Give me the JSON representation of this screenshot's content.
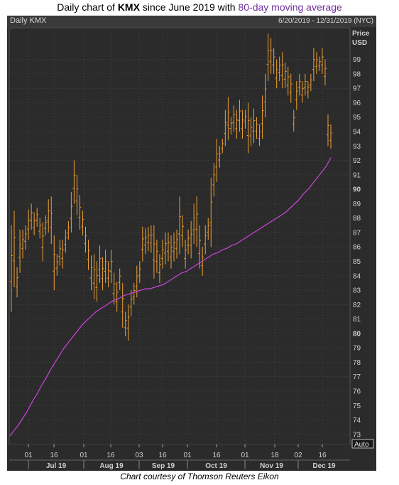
{
  "title": {
    "prefix": "Daily chart of ",
    "ticker": "KMX",
    "middle": " since June 2019 with ",
    "ma_text": "80-day moving average"
  },
  "header": {
    "left": "Daily KMX",
    "right": "6/20/2019 - 12/31/2019 (NYC)"
  },
  "footer": "Chart courtesy of Thomson Reuters Eikon",
  "chart_data": {
    "type": "ohlc-bar",
    "ylabel": "Price",
    "yunit": "USD",
    "auto_label": "Auto",
    "ylim": [
      72.3,
      101.2
    ],
    "y_ticks": [
      73,
      74,
      75,
      76,
      77,
      78,
      79,
      80,
      81,
      82,
      83,
      84,
      85,
      86,
      87,
      88,
      89,
      90,
      91,
      92,
      93,
      94,
      95,
      96,
      97,
      98,
      99
    ],
    "y_bold_ticks": [
      80,
      90
    ],
    "x_day_ticks": [
      "01",
      "16",
      "01",
      "16",
      "03",
      "16",
      "01",
      "16",
      "01",
      "18",
      "02",
      "16"
    ],
    "x_month_labels": [
      "Jul 19",
      "Aug 19",
      "Sep 19",
      "Oct 19",
      "Nov 19",
      "Dec 19"
    ],
    "colors": {
      "bars": "#f0a030",
      "moving_average": "#cc44dd",
      "background": "#2b2b2b",
      "grid": "#555555",
      "axis_text": "#d0d0d0"
    },
    "bars": [
      [
        87.5,
        81.5
      ],
      [
        88.5,
        83.2
      ],
      [
        84.6,
        82.5
      ],
      [
        87.2,
        84.2
      ],
      [
        87.2,
        85.2
      ],
      [
        87.5,
        85.8
      ],
      [
        88.6,
        86.5
      ],
      [
        89.0,
        87.2
      ],
      [
        88.4,
        86.8
      ],
      [
        88.7,
        87.4
      ],
      [
        88.0,
        86.6
      ],
      [
        87.7,
        85.0
      ],
      [
        88.2,
        86.8
      ],
      [
        89.3,
        87.0
      ],
      [
        89.5,
        86.2
      ],
      [
        86.8,
        83.0
      ],
      [
        85.5,
        84.0
      ],
      [
        86.5,
        84.7
      ],
      [
        86.5,
        84.5
      ],
      [
        87.2,
        85.6
      ],
      [
        87.8,
        86.5
      ],
      [
        89.8,
        87.0
      ],
      [
        92.0,
        89.0
      ],
      [
        91.0,
        88.2
      ],
      [
        89.6,
        87.2
      ],
      [
        88.5,
        86.8
      ],
      [
        87.4,
        85.6
      ],
      [
        86.5,
        84.4
      ],
      [
        85.4,
        83.0
      ],
      [
        85.5,
        82.4
      ],
      [
        85.0,
        82.2
      ],
      [
        86.1,
        83.5
      ],
      [
        85.3,
        83.0
      ],
      [
        85.8,
        83.5
      ],
      [
        85.0,
        83.2
      ],
      [
        85.8,
        83.5
      ],
      [
        84.2,
        82.0
      ],
      [
        83.6,
        81.5
      ],
      [
        84.5,
        83.0
      ],
      [
        83.5,
        80.4
      ],
      [
        81.5,
        79.8
      ],
      [
        82.0,
        79.5
      ],
      [
        83.0,
        81.2
      ],
      [
        83.5,
        82.0
      ],
      [
        84.7,
        82.5
      ],
      [
        85.0,
        83.5
      ],
      [
        87.4,
        85.0
      ],
      [
        87.3,
        85.5
      ],
      [
        87.4,
        85.7
      ],
      [
        87.5,
        85.6
      ],
      [
        87.5,
        83.8
      ],
      [
        86.5,
        84.2
      ],
      [
        85.5,
        83.5
      ],
      [
        86.5,
        84.5
      ],
      [
        87.0,
        84.8
      ],
      [
        87.0,
        85.0
      ],
      [
        86.8,
        84.5
      ],
      [
        87.0,
        85.0
      ],
      [
        87.2,
        85.2
      ],
      [
        89.5,
        85.5
      ],
      [
        88.2,
        86.0
      ],
      [
        86.5,
        84.5
      ],
      [
        87.2,
        85.5
      ],
      [
        87.8,
        85.2
      ],
      [
        89.0,
        86.2
      ],
      [
        89.5,
        86.0
      ],
      [
        87.5,
        84.5
      ],
      [
        86.0,
        84.0
      ],
      [
        87.5,
        85.5
      ],
      [
        88.0,
        86.5
      ],
      [
        90.8,
        86.0
      ],
      [
        91.8,
        89.5
      ],
      [
        93.5,
        90.5
      ],
      [
        93.0,
        91.5
      ],
      [
        93.5,
        92.5
      ],
      [
        95.5,
        93.0
      ],
      [
        96.4,
        93.4
      ],
      [
        95.0,
        93.8
      ],
      [
        95.8,
        94.0
      ],
      [
        95.5,
        93.5
      ],
      [
        96.2,
        94.0
      ],
      [
        95.5,
        93.5
      ],
      [
        95.5,
        94.2
      ],
      [
        96.0,
        92.5
      ],
      [
        95.0,
        93.0
      ],
      [
        95.6,
        93.2
      ],
      [
        95.0,
        93.5
      ],
      [
        94.5,
        93.0
      ],
      [
        96.5,
        93.5
      ],
      [
        98.0,
        95.0
      ],
      [
        100.8,
        97.5
      ],
      [
        100.5,
        98.0
      ],
      [
        99.8,
        98.0
      ],
      [
        99.0,
        97.0
      ],
      [
        99.2,
        97.5
      ],
      [
        99.5,
        97.0
      ],
      [
        98.8,
        97.0
      ],
      [
        98.5,
        96.5
      ],
      [
        98.0,
        96.0
      ],
      [
        95.5,
        94.0
      ],
      [
        97.5,
        95.5
      ],
      [
        98.0,
        96.5
      ],
      [
        97.5,
        96.0
      ],
      [
        98.0,
        96.5
      ],
      [
        97.5,
        96.3
      ],
      [
        98.0,
        96.8
      ],
      [
        99.8,
        97.5
      ],
      [
        99.5,
        98.0
      ],
      [
        99.2,
        98.2
      ],
      [
        99.8,
        98.0
      ],
      [
        99.0,
        97.2
      ],
      [
        95.2,
        93.0
      ],
      [
        94.5,
        92.8
      ]
    ],
    "moving_average": [
      72.9,
      73.3,
      73.7,
      74.2,
      74.7,
      75.3,
      75.8,
      76.4,
      76.9,
      77.5,
      78.0,
      78.5,
      79.0,
      79.4,
      79.8,
      80.2,
      80.6,
      80.9,
      81.2,
      81.5,
      81.7,
      81.9,
      82.1,
      82.3,
      82.4,
      82.6,
      82.7,
      82.8,
      82.9,
      83.0,
      83.1,
      83.1,
      83.2,
      83.3,
      83.4,
      83.6,
      83.8,
      84.0,
      84.2,
      84.3,
      84.5,
      84.7,
      84.9,
      85.1,
      85.3,
      85.5,
      85.6,
      85.8,
      85.9,
      86.1,
      86.2,
      86.4,
      86.6,
      86.8,
      87.0,
      87.2,
      87.4,
      87.6,
      87.8,
      88.0,
      88.2,
      88.4,
      88.7,
      89.0,
      89.3,
      89.7,
      90.0,
      90.4,
      90.8,
      91.2,
      91.6,
      92.2
    ]
  }
}
